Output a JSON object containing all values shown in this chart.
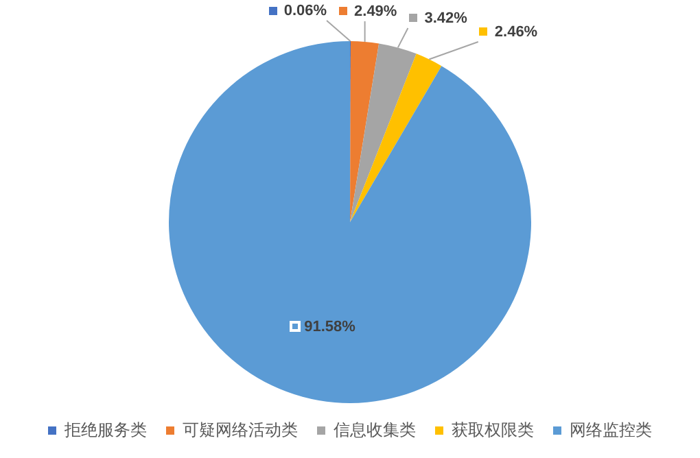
{
  "chart_data": {
    "type": "pie",
    "categories": [
      "拒绝服务类",
      "可疑网络活动类",
      "信息收集类",
      "获取权限类",
      "网络监控类"
    ],
    "values": [
      0.06,
      2.49,
      3.42,
      2.46,
      91.58
    ],
    "colors": [
      "#4472c4",
      "#ed7d31",
      "#a5a5a5",
      "#ffc000",
      "#5b9bd5"
    ],
    "value_labels": [
      "0.06%",
      "2.49%",
      "3.42%",
      "2.46%",
      "91.58%"
    ],
    "legend": "bottom"
  }
}
